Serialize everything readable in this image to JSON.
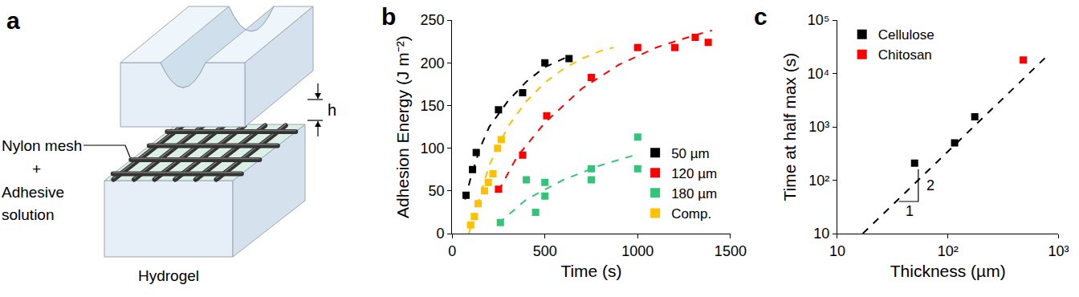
{
  "diagram": {
    "label": "a",
    "mesh_label": [
      "Nylon mesh",
      "+",
      "Adhesive",
      "solution"
    ],
    "gap_label": "h",
    "substrate_label": "Hydrogel"
  },
  "chart_data": [
    {
      "type": "scatter",
      "title": "b",
      "x_label": "Time (s)",
      "y_label": "Adhesion Energy (J m⁻²)",
      "xlim": [
        0,
        1500
      ],
      "xticks": [
        0,
        500,
        1000,
        1500
      ],
      "ylim": [
        0,
        250
      ],
      "yticks": [
        0,
        50,
        100,
        150,
        200,
        250
      ],
      "grid": false,
      "legend": "lower right",
      "series": [
        {
          "name": "50 µm",
          "color": "#000000",
          "marker": "square",
          "x": [
            75,
            110,
            130,
            250,
            380,
            500,
            630
          ],
          "values": [
            45,
            75,
            95,
            145,
            165,
            200,
            205
          ]
        },
        {
          "name": "120 µm",
          "color": "#ff0000",
          "marker": "square",
          "x": [
            250,
            380,
            510,
            750,
            1000,
            1200,
            1310,
            1380
          ],
          "values": [
            52,
            92,
            138,
            183,
            218,
            218,
            230,
            224
          ]
        },
        {
          "name": "180 µm",
          "color": "#33c47a",
          "marker": "square",
          "x": [
            260,
            400,
            450,
            500,
            500,
            750,
            750,
            1000,
            1000
          ],
          "values": [
            13,
            63,
            25,
            60,
            44,
            76,
            63,
            113,
            76
          ]
        },
        {
          "name": "Comp.",
          "color": "#ffc000",
          "marker": "square",
          "x": [
            100,
            120,
            140,
            175,
            195,
            220,
            245,
            265
          ],
          "values": [
            10,
            20,
            35,
            50,
            60,
            70,
            100,
            110
          ]
        },
        {
          "type": "line",
          "line_style": "dashed",
          "color": "#000000",
          "x": [
            70,
            100,
            150,
            200,
            300,
            400,
            500,
            630
          ],
          "values": [
            40,
            65,
            100,
            125,
            155,
            178,
            195,
            208
          ]
        },
        {
          "type": "line",
          "line_style": "dashed",
          "color": "#ff0000",
          "x": [
            250,
            350,
            500,
            700,
            900,
            1100,
            1300,
            1400
          ],
          "values": [
            50,
            90,
            130,
            170,
            198,
            218,
            232,
            238
          ]
        },
        {
          "type": "line",
          "line_style": "dashed",
          "color": "#33c47a",
          "x": [
            250,
            400,
            600,
            800,
            1000
          ],
          "values": [
            12,
            40,
            63,
            80,
            93
          ]
        },
        {
          "type": "line",
          "line_style": "dashed",
          "color": "#ffc000",
          "x": [
            90,
            150,
            200,
            300,
            400,
            500,
            600,
            700,
            800,
            870
          ],
          "values": [
            0,
            45,
            80,
            125,
            155,
            177,
            193,
            205,
            214,
            218
          ]
        }
      ]
    },
    {
      "type": "scatter",
      "title": "c",
      "x_label": "Thickness (µm)",
      "y_label": "Time at half max (s)",
      "log": true,
      "xlim": [
        10,
        1000
      ],
      "xticks": [
        10,
        {
          "value": 100,
          "label": "10²"
        },
        {
          "value": 1000,
          "label": "10³"
        }
      ],
      "ylim": [
        10,
        100000
      ],
      "yticks": [
        10,
        {
          "value": 100,
          "label": "10²"
        },
        {
          "value": 1000,
          "label": "10³"
        },
        {
          "value": 10000,
          "label": "10⁴"
        },
        {
          "value": 100000,
          "label": "10⁵"
        }
      ],
      "grid": false,
      "legend": "upper left",
      "annotations": [
        {
          "text": "1"
        },
        {
          "text": "2"
        }
      ],
      "series": [
        {
          "name": "Cellulose",
          "color": "#000000",
          "marker": "square",
          "x": [
            50,
            115,
            175
          ],
          "values": [
            210,
            500,
            1550
          ]
        },
        {
          "name": "Chitosan",
          "color": "#ff0000",
          "marker": "square",
          "x": [
            480
          ],
          "values": [
            18000
          ]
        },
        {
          "type": "line",
          "line_style": "dashed",
          "color": "#000000",
          "x": [
            17,
            800
          ],
          "values": [
            10,
            22000
          ]
        }
      ]
    }
  ]
}
